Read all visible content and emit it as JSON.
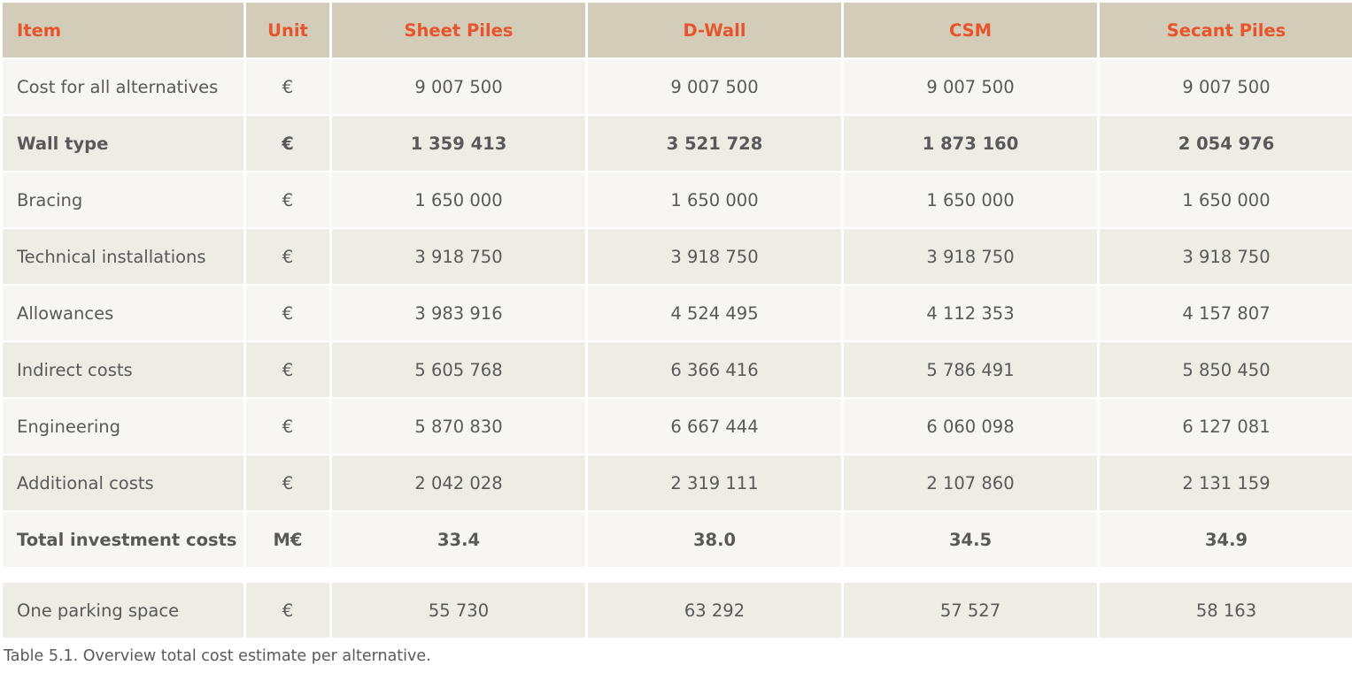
{
  "table": {
    "headers": [
      "Item",
      "Unit",
      "Sheet Piles",
      "D-Wall",
      "CSM",
      "Secant Piles"
    ],
    "rows": [
      {
        "item": "Cost for all alternatives",
        "unit": "€",
        "values": [
          "9 007 500",
          "9 007 500",
          "9 007 500",
          "9 007 500"
        ]
      },
      {
        "item": "Wall type",
        "unit": "€",
        "values": [
          "1 359 413",
          "3 521 728",
          "1 873 160",
          "2 054 976"
        ]
      },
      {
        "item": "Bracing",
        "unit": "€",
        "values": [
          "1 650 000",
          "1 650 000",
          "1 650 000",
          "1 650 000"
        ]
      },
      {
        "item": "Technical installations",
        "unit": "€",
        "values": [
          "3 918 750",
          "3 918 750",
          "3 918 750",
          "3 918 750"
        ]
      },
      {
        "item": "Allowances",
        "unit": "€",
        "values": [
          "3 983 916",
          "4 524 495",
          "4 112 353",
          "4 157 807"
        ]
      },
      {
        "item": "Indirect costs",
        "unit": "€",
        "values": [
          "5 605 768",
          "6 366 416",
          "5 786 491",
          "5 850 450"
        ]
      },
      {
        "item": "Engineering",
        "unit": "€",
        "values": [
          "5 870 830",
          "6 667 444",
          "6 060 098",
          "6 127 081"
        ]
      },
      {
        "item": "Additional costs",
        "unit": "€",
        "values": [
          "2 042 028",
          "2 319 111",
          "2 107 860",
          "2 131 159"
        ]
      },
      {
        "item": "Total investment costs",
        "unit": "M€",
        "values": [
          "33.4",
          "38.0",
          "34.5",
          "34.9"
        ]
      }
    ],
    "extra_row": {
      "item": "One parking space",
      "unit": "€",
      "values": [
        "55 730",
        "63 292",
        "57 527",
        "58 163"
      ]
    }
  },
  "caption": "Table 5.1. Overview total cost estimate per alternative.",
  "colors": {
    "header_bg": "#d3ccb8",
    "header_text": "#e8542b",
    "row_light": "#f7f6f2",
    "row_dark": "#efece6",
    "body_text": "#595959"
  }
}
